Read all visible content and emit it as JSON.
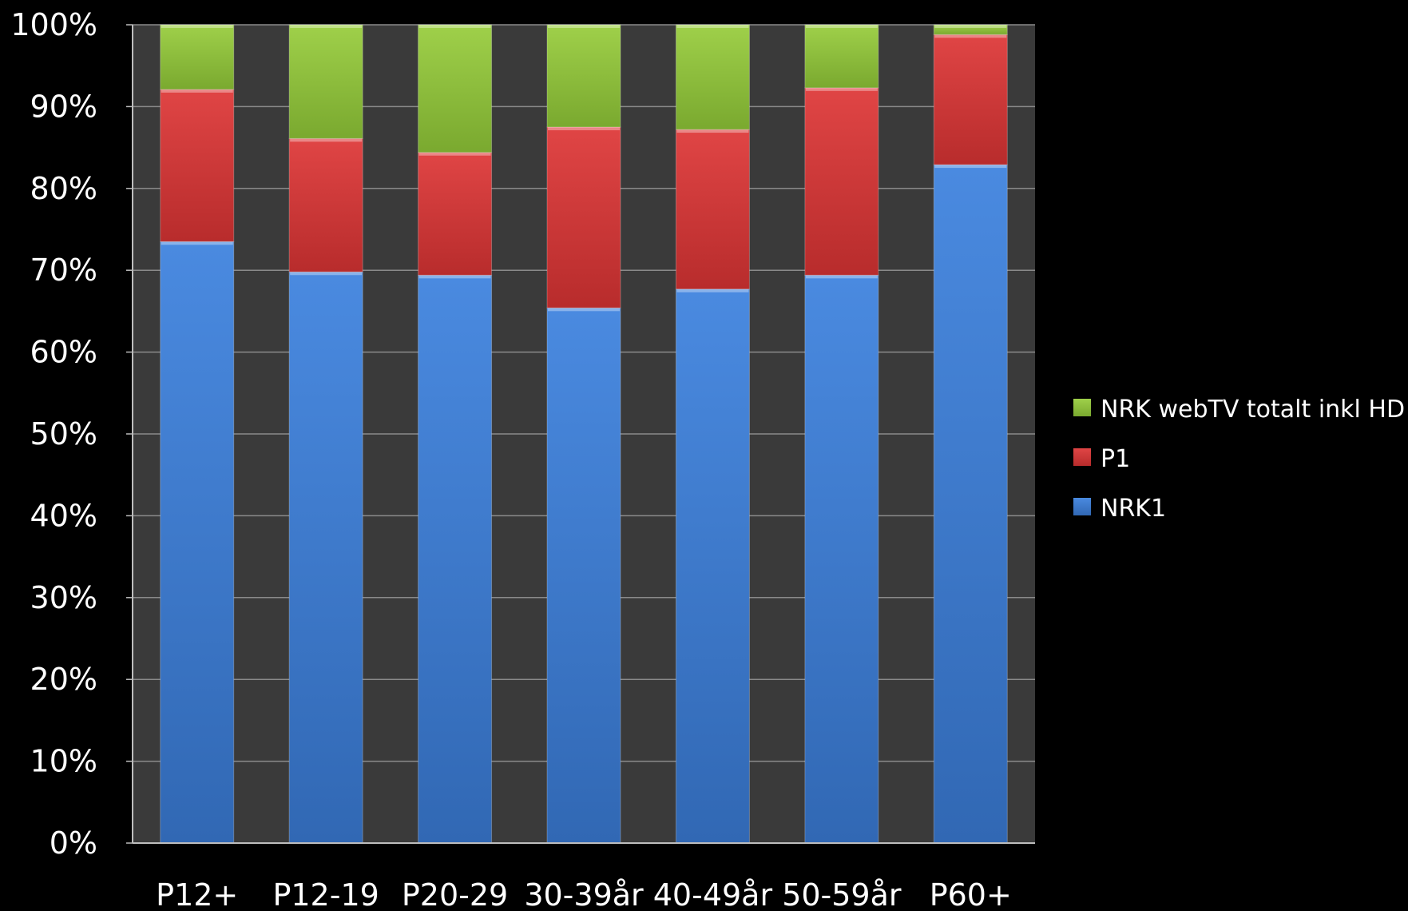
{
  "chart_data": {
    "type": "bar",
    "stacked": true,
    "percent_stacked": true,
    "categories": [
      "P12+",
      "P12-19",
      "P20-29",
      "30-39år",
      "40-49år",
      "50-59år",
      "P60+"
    ],
    "series": [
      {
        "name": "NRK1",
        "color": "#3f7fd6",
        "values": [
          73.5,
          69.8,
          69.4,
          65.4,
          67.7,
          69.4,
          82.9
        ]
      },
      {
        "name": "P1",
        "color": "#d83b3b",
        "values": [
          18.6,
          16.3,
          15.0,
          22.1,
          19.5,
          22.9,
          15.9
        ]
      },
      {
        "name": "NRK webTV totalt inkl HD",
        "color": "#8fbf3c",
        "values": [
          7.9,
          13.9,
          15.6,
          12.5,
          12.8,
          7.7,
          1.2
        ]
      }
    ],
    "ylim": [
      0,
      100
    ],
    "yticks": [
      "0%",
      "10%",
      "20%",
      "30%",
      "40%",
      "50%",
      "60%",
      "70%",
      "80%",
      "90%",
      "100%"
    ],
    "legend": {
      "position": "right",
      "items": [
        "NRK webTV totalt inkl HD",
        "P1",
        "NRK1"
      ]
    },
    "grid": true,
    "plot_background": "#3a3a3a",
    "background": "#000000"
  }
}
